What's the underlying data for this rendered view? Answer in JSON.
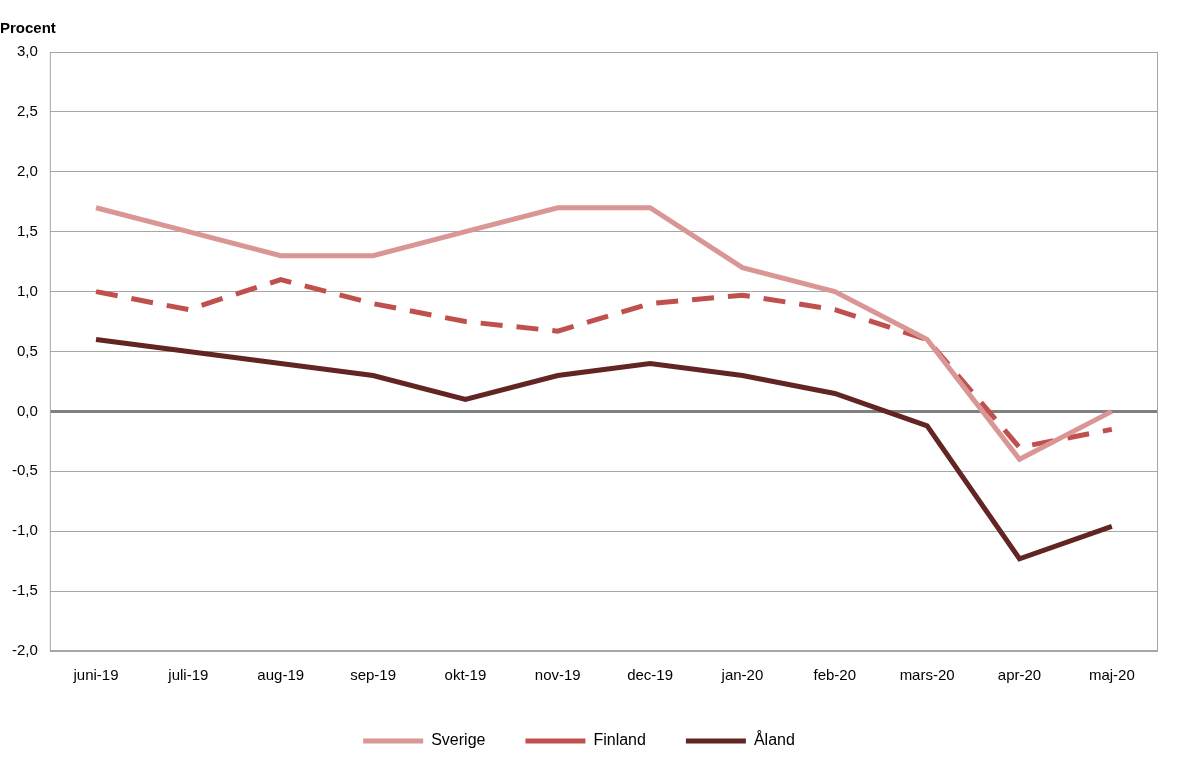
{
  "chart_data": {
    "type": "line",
    "ylabel": "Procent",
    "categories": [
      "juni-19",
      "juli-19",
      "aug-19",
      "sep-19",
      "okt-19",
      "nov-19",
      "dec-19",
      "jan-20",
      "feb-20",
      "mars-20",
      "apr-20",
      "maj-20"
    ],
    "series": [
      {
        "name": "Sverige",
        "color": "#d99694",
        "line_style": "solid",
        "values": [
          1.7,
          1.5,
          1.3,
          1.3,
          1.5,
          1.7,
          1.7,
          1.2,
          1.0,
          0.6,
          -0.4,
          0.0
        ]
      },
      {
        "name": "Finland",
        "color": "#c0504d",
        "line_style": "dashed",
        "values": [
          1.0,
          0.85,
          1.1,
          0.9,
          0.75,
          0.67,
          0.9,
          0.97,
          0.85,
          0.6,
          -0.3,
          -0.15
        ]
      },
      {
        "name": "Åland",
        "color": "#632523",
        "line_style": "solid",
        "values": [
          0.6,
          0.5,
          0.4,
          0.3,
          0.1,
          0.3,
          0.4,
          0.3,
          0.15,
          -0.12,
          -1.23,
          -0.96
        ]
      }
    ],
    "ylim": [
      -2,
      3
    ],
    "yticks": [
      {
        "value": -2,
        "label": "-2,0"
      },
      {
        "value": -1.5,
        "label": "-1,5"
      },
      {
        "value": -1,
        "label": "-1,0"
      },
      {
        "value": -0.5,
        "label": "-0,5"
      },
      {
        "value": 0,
        "label": "0,0"
      },
      {
        "value": 0.5,
        "label": "0,5"
      },
      {
        "value": 1,
        "label": "1,0"
      },
      {
        "value": 1.5,
        "label": "1,5"
      },
      {
        "value": 2,
        "label": "2,0"
      },
      {
        "value": 2.5,
        "label": "2,5"
      },
      {
        "value": 3,
        "label": "3,0"
      }
    ],
    "grid": true,
    "legend": "bottom"
  }
}
